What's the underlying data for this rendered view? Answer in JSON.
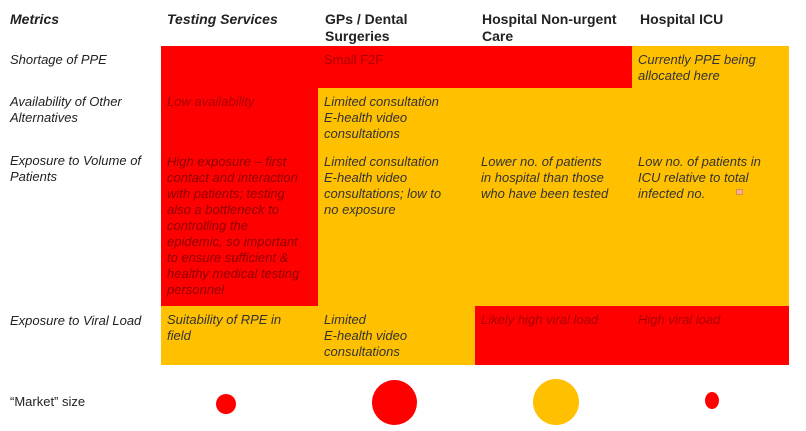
{
  "headers": {
    "metrics": "Metrics",
    "testing": "Testing Services",
    "gps_line1": "GPs / Dental",
    "gps_line2": "Surgeries",
    "hospital_nonurgent_line1": "Hospital Non-urgent",
    "hospital_nonurgent_line2": "Care",
    "icu": "Hospital ICU"
  },
  "rows": {
    "ppe": {
      "metric": "Shortage of PPE",
      "gps": "Small F2F",
      "icu_line1": "Currently PPE being",
      "icu_line2": "allocated here"
    },
    "alternatives": {
      "metric_line1": "Availability of Other",
      "metric_line2": "Alternatives",
      "testing": "Low availability",
      "gps_line1": "Limited consultation",
      "gps_line2": "E-health video",
      "gps_line3": "consultations"
    },
    "volume": {
      "metric_line1": "Exposure to Volume of",
      "metric_line2": "Patients",
      "testing_lines": [
        "High exposure – first",
        "contact and interaction",
        "with patients; testing",
        "also a bottleneck to",
        "controlling the",
        "epidemic, so important",
        "to ensure sufficient &",
        "healthy medical testing",
        "personnel"
      ],
      "gps_lines": [
        "Limited consultation",
        "E-health video",
        "consultations; low to",
        "no exposure"
      ],
      "hospital_lines": [
        "Lower no. of patients",
        "in hospital than those",
        "who have been tested"
      ],
      "icu_lines": [
        "Low no. of patients in",
        "ICU relative to total",
        "infected no."
      ]
    },
    "viral": {
      "metric": "Exposure to Viral Load",
      "testing_line1": "Suitability of RPE in",
      "testing_line2": "field",
      "gps_line1": "Limited",
      "gps_line2": "E-health video",
      "gps_line3": "consultations",
      "hospital": "Likely high viral load",
      "icu": "High viral load"
    }
  },
  "market": {
    "label": "“Market” size",
    "testing_color": "#ff0000",
    "gps_color": "#ff0000",
    "hospital_color": "#ffc000",
    "icu_color": "#ff0000"
  },
  "colors": {
    "red": "#ff0000",
    "amber": "#ffc000"
  }
}
